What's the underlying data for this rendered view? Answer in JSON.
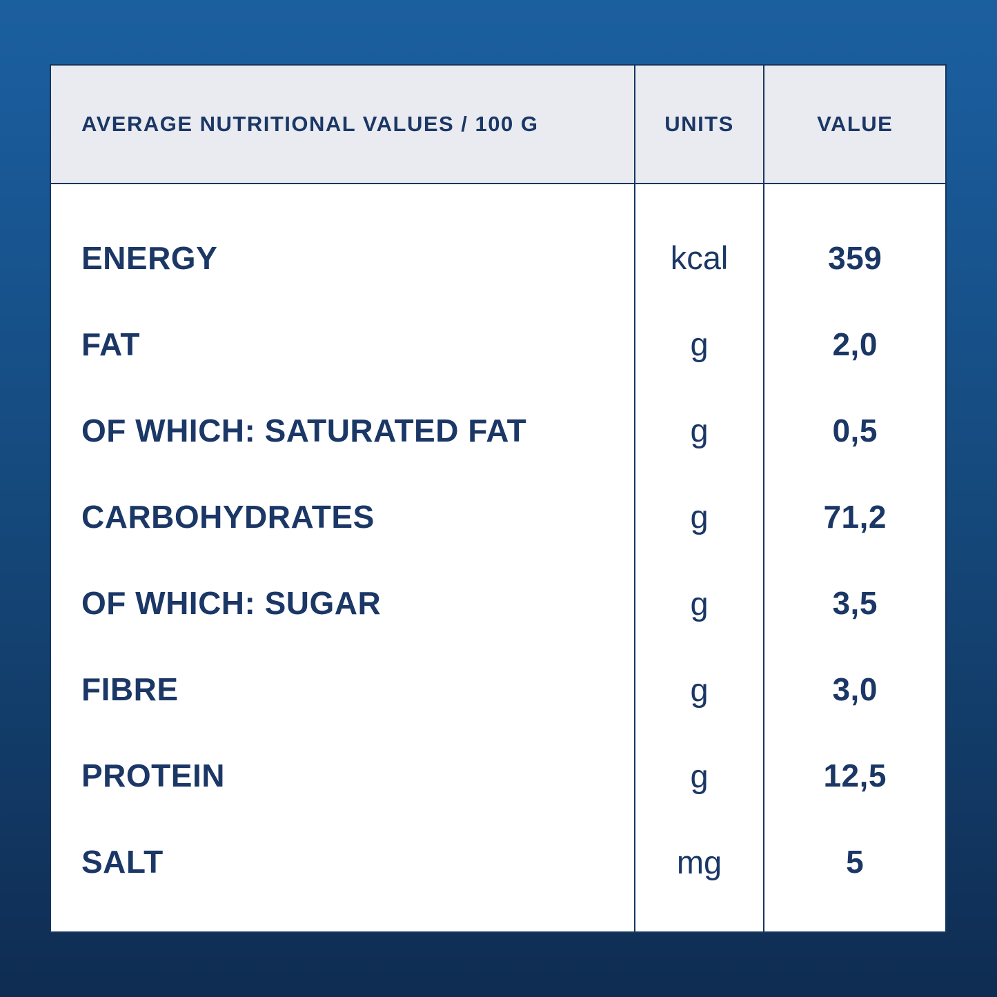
{
  "table": {
    "header": {
      "col1": "AVERAGE NUTRITIONAL VALUES / 100 G",
      "col2": "UNITS",
      "col3": "VALUE"
    },
    "rows": [
      {
        "label": "ENERGY",
        "unit": "kcal",
        "value": "359"
      },
      {
        "label": "FAT",
        "unit": "g",
        "value": "2,0"
      },
      {
        "label": "OF WHICH: SATURATED FAT",
        "unit": "g",
        "value": "0,5"
      },
      {
        "label": "CARBOHYDRATES",
        "unit": "g",
        "value": "71,2"
      },
      {
        "label": "OF WHICH: SUGAR",
        "unit": "g",
        "value": "3,5"
      },
      {
        "label": "FIBRE",
        "unit": "g",
        "value": "3,0"
      },
      {
        "label": "PROTEIN",
        "unit": "g",
        "value": "12,5"
      },
      {
        "label": "SALT",
        "unit": "mg",
        "value": "5"
      }
    ]
  },
  "colors": {
    "background_top": "#1c5f9f",
    "background_bottom": "#0f2c52",
    "card_background": "#ffffff",
    "header_background": "#e9ebf0",
    "text_navy": "#1b3766",
    "border_navy": "#16365f"
  },
  "chart_data": {
    "type": "table",
    "title": "AVERAGE NUTRITIONAL VALUES / 100 G",
    "columns": [
      "AVERAGE NUTRITIONAL VALUES / 100 G",
      "UNITS",
      "VALUE"
    ],
    "rows": [
      [
        "ENERGY",
        "kcal",
        "359"
      ],
      [
        "FAT",
        "g",
        "2,0"
      ],
      [
        "OF WHICH: SATURATED FAT",
        "g",
        "0,5"
      ],
      [
        "CARBOHYDRATES",
        "g",
        "71,2"
      ],
      [
        "OF WHICH: SUGAR",
        "g",
        "3,5"
      ],
      [
        "FIBRE",
        "g",
        "3,0"
      ],
      [
        "PROTEIN",
        "g",
        "12,5"
      ],
      [
        "SALT",
        "mg",
        "5"
      ]
    ]
  }
}
